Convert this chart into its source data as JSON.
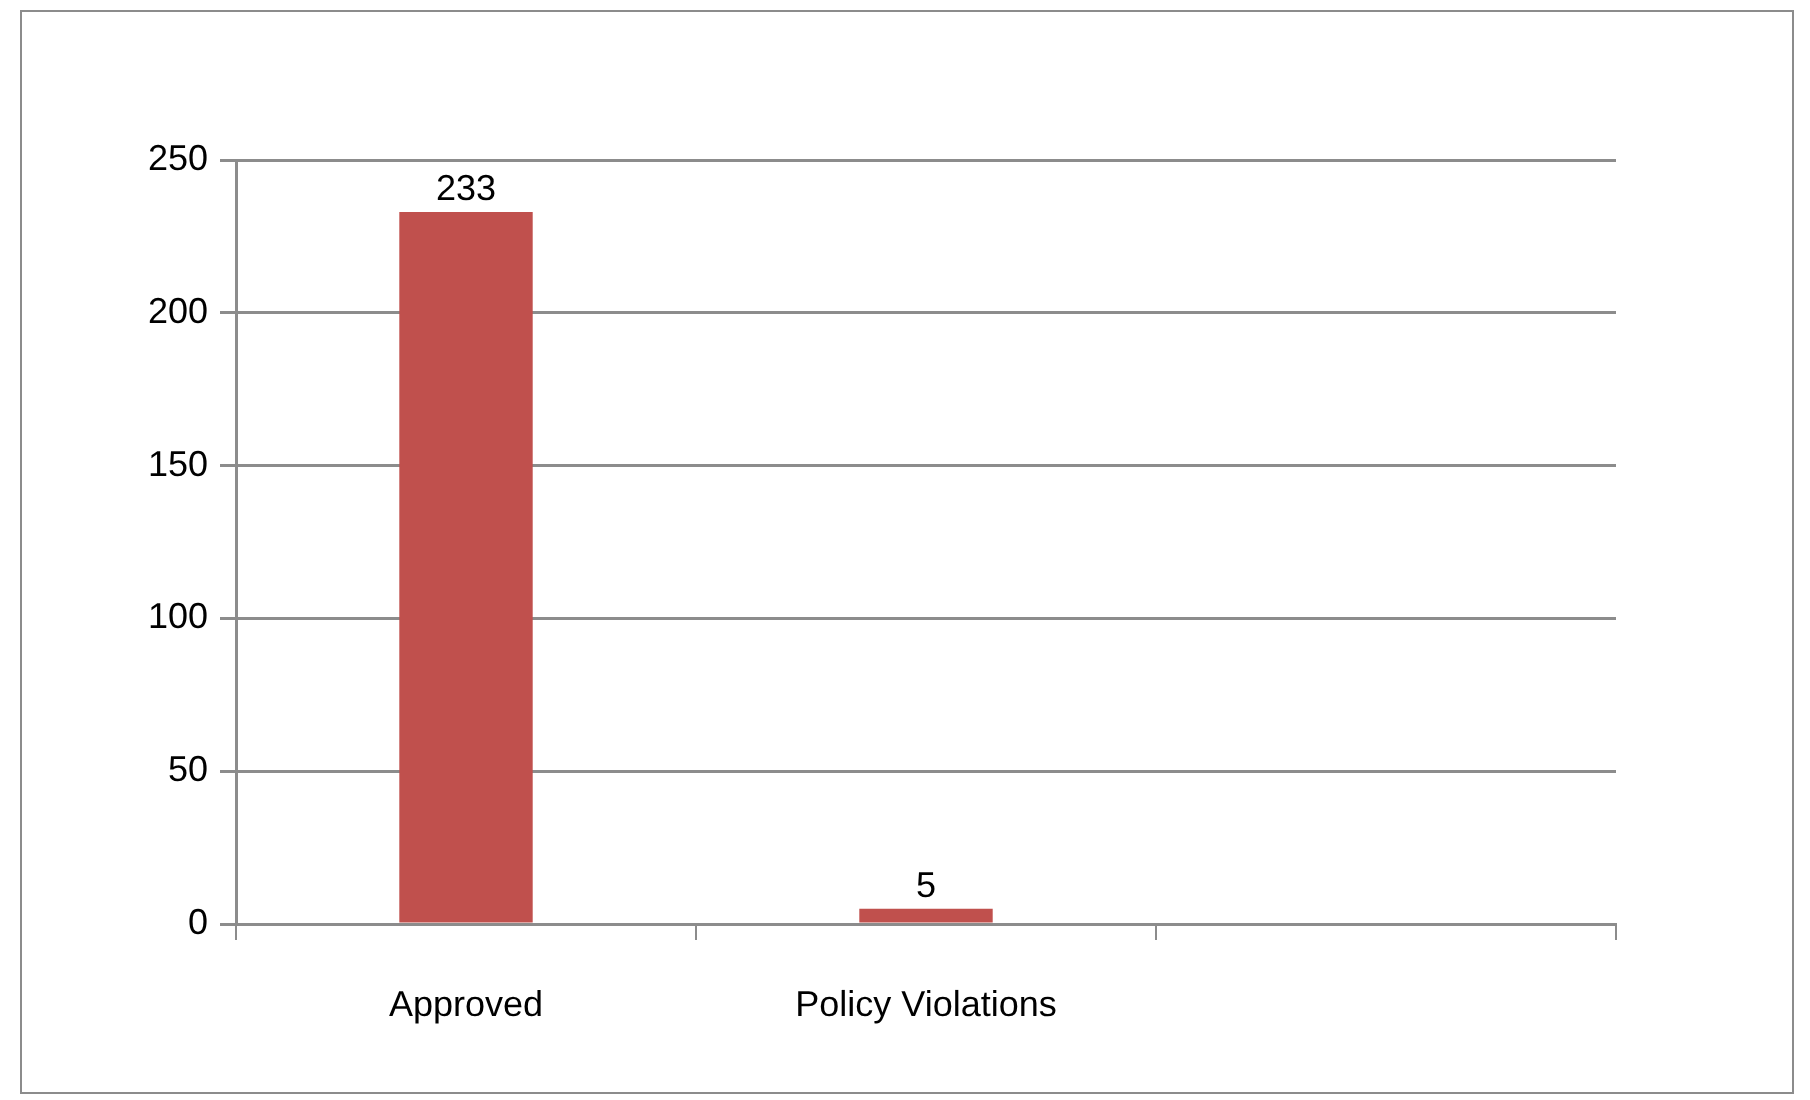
{
  "chart_data": {
    "type": "bar",
    "categories": [
      "Approved",
      "Policy Violations",
      null
    ],
    "values": [
      233,
      5,
      null
    ],
    "color": "#c0504d",
    "ylim": [
      0,
      250
    ],
    "yticks": [
      0,
      50,
      100,
      150,
      200,
      250
    ],
    "grid": "y",
    "data_labels": true
  }
}
